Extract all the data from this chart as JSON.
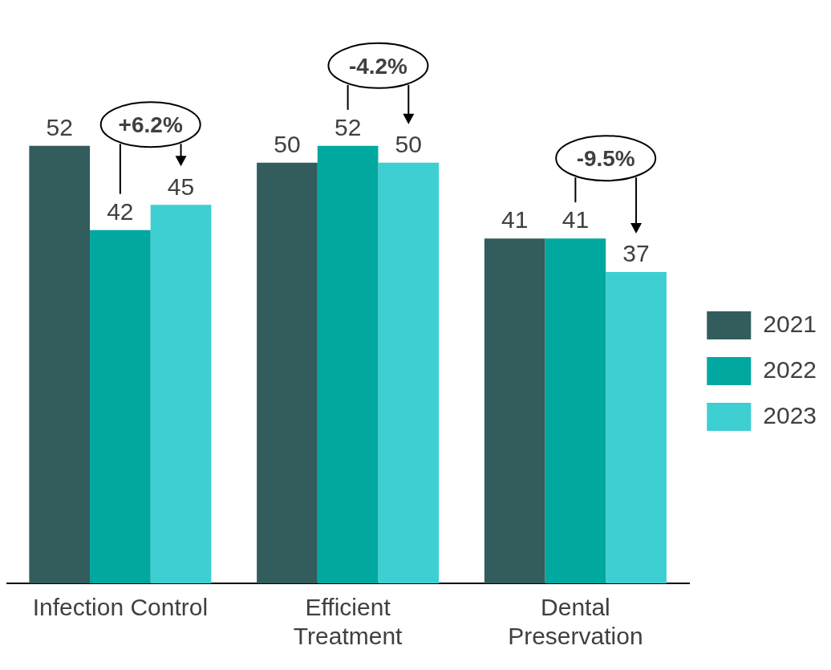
{
  "chart_data": {
    "type": "bar",
    "categories": [
      "Infection Control",
      "Efficient Treatment",
      "Dental Preservation"
    ],
    "series": [
      {
        "name": "2021",
        "color": "#335c5c",
        "values": [
          52,
          50,
          41
        ]
      },
      {
        "name": "2022",
        "color": "#00a8a0",
        "values": [
          42,
          52,
          41
        ]
      },
      {
        "name": "2023",
        "color": "#3ecfd2",
        "values": [
          45,
          50,
          37
        ]
      }
    ],
    "data_labels": true,
    "legend": "right",
    "grid": false,
    "annotations": [
      "+6.2%",
      "-4.2%",
      "-9.5%"
    ]
  }
}
